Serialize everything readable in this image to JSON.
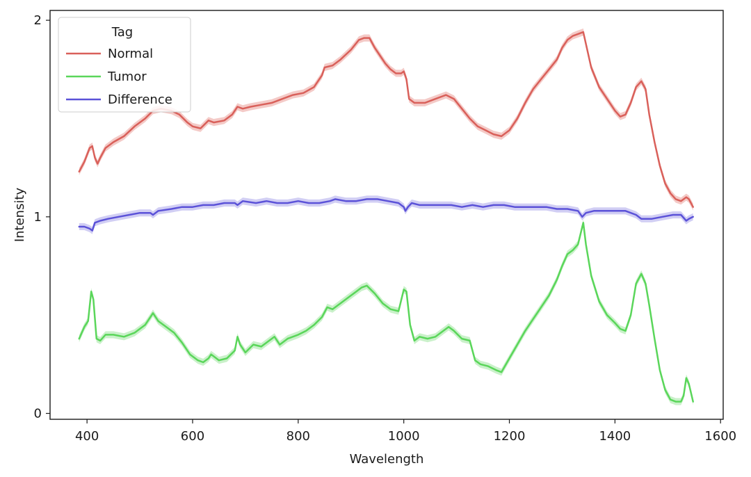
{
  "chart_data": {
    "type": "line",
    "xlabel": "Wavelength",
    "ylabel": "Intensity",
    "xlim": [
      330,
      1605
    ],
    "ylim": [
      -0.03,
      2.05
    ],
    "xticks": [
      400,
      600,
      800,
      1000,
      1200,
      1400,
      1600
    ],
    "yticks": [
      0,
      1,
      2
    ],
    "grid": false,
    "legend": {
      "title": "Tag",
      "placement": "top-left"
    },
    "series": [
      {
        "name": "Normal",
        "color": "#d9605a",
        "band_color": "#f0b8b4",
        "points": [
          [
            385,
            1.23
          ],
          [
            395,
            1.28
          ],
          [
            405,
            1.35
          ],
          [
            410,
            1.36
          ],
          [
            415,
            1.3
          ],
          [
            420,
            1.27
          ],
          [
            425,
            1.3
          ],
          [
            435,
            1.35
          ],
          [
            450,
            1.38
          ],
          [
            470,
            1.41
          ],
          [
            490,
            1.46
          ],
          [
            510,
            1.5
          ],
          [
            525,
            1.54
          ],
          [
            540,
            1.55
          ],
          [
            560,
            1.54
          ],
          [
            575,
            1.52
          ],
          [
            590,
            1.48
          ],
          [
            600,
            1.46
          ],
          [
            615,
            1.45
          ],
          [
            630,
            1.49
          ],
          [
            640,
            1.48
          ],
          [
            660,
            1.49
          ],
          [
            675,
            1.52
          ],
          [
            685,
            1.56
          ],
          [
            695,
            1.55
          ],
          [
            710,
            1.56
          ],
          [
            730,
            1.57
          ],
          [
            750,
            1.58
          ],
          [
            770,
            1.6
          ],
          [
            790,
            1.62
          ],
          [
            810,
            1.63
          ],
          [
            830,
            1.66
          ],
          [
            845,
            1.72
          ],
          [
            850,
            1.76
          ],
          [
            865,
            1.77
          ],
          [
            880,
            1.8
          ],
          [
            900,
            1.85
          ],
          [
            915,
            1.9
          ],
          [
            925,
            1.91
          ],
          [
            935,
            1.91
          ],
          [
            945,
            1.86
          ],
          [
            955,
            1.82
          ],
          [
            965,
            1.78
          ],
          [
            975,
            1.75
          ],
          [
            985,
            1.73
          ],
          [
            995,
            1.73
          ],
          [
            1000,
            1.74
          ],
          [
            1005,
            1.7
          ],
          [
            1010,
            1.6
          ],
          [
            1020,
            1.58
          ],
          [
            1040,
            1.58
          ],
          [
            1060,
            1.6
          ],
          [
            1080,
            1.62
          ],
          [
            1095,
            1.6
          ],
          [
            1110,
            1.55
          ],
          [
            1125,
            1.5
          ],
          [
            1140,
            1.46
          ],
          [
            1155,
            1.44
          ],
          [
            1170,
            1.42
          ],
          [
            1185,
            1.41
          ],
          [
            1200,
            1.44
          ],
          [
            1215,
            1.5
          ],
          [
            1230,
            1.58
          ],
          [
            1245,
            1.65
          ],
          [
            1260,
            1.7
          ],
          [
            1275,
            1.75
          ],
          [
            1290,
            1.8
          ],
          [
            1300,
            1.86
          ],
          [
            1310,
            1.9
          ],
          [
            1320,
            1.92
          ],
          [
            1330,
            1.93
          ],
          [
            1340,
            1.94
          ],
          [
            1345,
            1.88
          ],
          [
            1355,
            1.76
          ],
          [
            1370,
            1.66
          ],
          [
            1385,
            1.6
          ],
          [
            1400,
            1.54
          ],
          [
            1410,
            1.51
          ],
          [
            1420,
            1.52
          ],
          [
            1430,
            1.58
          ],
          [
            1440,
            1.66
          ],
          [
            1450,
            1.69
          ],
          [
            1458,
            1.65
          ],
          [
            1465,
            1.52
          ],
          [
            1475,
            1.38
          ],
          [
            1485,
            1.26
          ],
          [
            1495,
            1.17
          ],
          [
            1505,
            1.12
          ],
          [
            1515,
            1.09
          ],
          [
            1525,
            1.08
          ],
          [
            1535,
            1.1
          ],
          [
            1540,
            1.09
          ],
          [
            1548,
            1.05
          ]
        ]
      },
      {
        "name": "Tumor",
        "color": "#5ad65a",
        "band_color": "#b8ecb8",
        "points": [
          [
            385,
            0.38
          ],
          [
            395,
            0.44
          ],
          [
            402,
            0.47
          ],
          [
            408,
            0.62
          ],
          [
            412,
            0.58
          ],
          [
            418,
            0.38
          ],
          [
            425,
            0.37
          ],
          [
            435,
            0.4
          ],
          [
            450,
            0.4
          ],
          [
            470,
            0.39
          ],
          [
            490,
            0.41
          ],
          [
            510,
            0.45
          ],
          [
            520,
            0.49
          ],
          [
            525,
            0.51
          ],
          [
            535,
            0.47
          ],
          [
            550,
            0.44
          ],
          [
            565,
            0.41
          ],
          [
            580,
            0.36
          ],
          [
            595,
            0.3
          ],
          [
            610,
            0.27
          ],
          [
            620,
            0.26
          ],
          [
            630,
            0.28
          ],
          [
            635,
            0.3
          ],
          [
            640,
            0.29
          ],
          [
            650,
            0.27
          ],
          [
            665,
            0.28
          ],
          [
            680,
            0.32
          ],
          [
            685,
            0.39
          ],
          [
            690,
            0.35
          ],
          [
            700,
            0.31
          ],
          [
            715,
            0.35
          ],
          [
            730,
            0.34
          ],
          [
            745,
            0.37
          ],
          [
            755,
            0.39
          ],
          [
            765,
            0.35
          ],
          [
            780,
            0.38
          ],
          [
            800,
            0.4
          ],
          [
            815,
            0.42
          ],
          [
            830,
            0.45
          ],
          [
            845,
            0.49
          ],
          [
            855,
            0.54
          ],
          [
            865,
            0.53
          ],
          [
            880,
            0.56
          ],
          [
            900,
            0.6
          ],
          [
            920,
            0.64
          ],
          [
            930,
            0.65
          ],
          [
            945,
            0.61
          ],
          [
            960,
            0.56
          ],
          [
            975,
            0.53
          ],
          [
            990,
            0.52
          ],
          [
            1000,
            0.63
          ],
          [
            1005,
            0.62
          ],
          [
            1012,
            0.45
          ],
          [
            1020,
            0.37
          ],
          [
            1030,
            0.39
          ],
          [
            1045,
            0.38
          ],
          [
            1060,
            0.39
          ],
          [
            1075,
            0.42
          ],
          [
            1085,
            0.44
          ],
          [
            1095,
            0.42
          ],
          [
            1110,
            0.38
          ],
          [
            1125,
            0.37
          ],
          [
            1135,
            0.27
          ],
          [
            1145,
            0.25
          ],
          [
            1160,
            0.24
          ],
          [
            1175,
            0.22
          ],
          [
            1185,
            0.21
          ],
          [
            1200,
            0.28
          ],
          [
            1215,
            0.35
          ],
          [
            1230,
            0.42
          ],
          [
            1245,
            0.48
          ],
          [
            1260,
            0.54
          ],
          [
            1275,
            0.6
          ],
          [
            1290,
            0.68
          ],
          [
            1300,
            0.75
          ],
          [
            1310,
            0.81
          ],
          [
            1320,
            0.83
          ],
          [
            1330,
            0.86
          ],
          [
            1340,
            0.97
          ],
          [
            1345,
            0.86
          ],
          [
            1355,
            0.7
          ],
          [
            1370,
            0.57
          ],
          [
            1385,
            0.5
          ],
          [
            1400,
            0.46
          ],
          [
            1410,
            0.43
          ],
          [
            1420,
            0.42
          ],
          [
            1430,
            0.5
          ],
          [
            1440,
            0.66
          ],
          [
            1450,
            0.71
          ],
          [
            1458,
            0.66
          ],
          [
            1465,
            0.55
          ],
          [
            1475,
            0.38
          ],
          [
            1485,
            0.22
          ],
          [
            1495,
            0.12
          ],
          [
            1505,
            0.07
          ],
          [
            1515,
            0.06
          ],
          [
            1525,
            0.06
          ],
          [
            1530,
            0.09
          ],
          [
            1535,
            0.18
          ],
          [
            1540,
            0.15
          ],
          [
            1548,
            0.06
          ]
        ]
      },
      {
        "name": "Difference",
        "color": "#5b52d8",
        "band_color": "#c2bdf0",
        "points": [
          [
            385,
            0.95
          ],
          [
            395,
            0.95
          ],
          [
            405,
            0.94
          ],
          [
            410,
            0.93
          ],
          [
            415,
            0.97
          ],
          [
            425,
            0.98
          ],
          [
            440,
            0.99
          ],
          [
            460,
            1.0
          ],
          [
            480,
            1.01
          ],
          [
            500,
            1.02
          ],
          [
            520,
            1.02
          ],
          [
            525,
            1.01
          ],
          [
            535,
            1.03
          ],
          [
            560,
            1.04
          ],
          [
            580,
            1.05
          ],
          [
            600,
            1.05
          ],
          [
            620,
            1.06
          ],
          [
            640,
            1.06
          ],
          [
            660,
            1.07
          ],
          [
            680,
            1.07
          ],
          [
            685,
            1.06
          ],
          [
            695,
            1.08
          ],
          [
            720,
            1.07
          ],
          [
            740,
            1.08
          ],
          [
            760,
            1.07
          ],
          [
            780,
            1.07
          ],
          [
            800,
            1.08
          ],
          [
            820,
            1.07
          ],
          [
            840,
            1.07
          ],
          [
            860,
            1.08
          ],
          [
            870,
            1.09
          ],
          [
            890,
            1.08
          ],
          [
            910,
            1.08
          ],
          [
            930,
            1.09
          ],
          [
            950,
            1.09
          ],
          [
            970,
            1.08
          ],
          [
            990,
            1.07
          ],
          [
            1000,
            1.05
          ],
          [
            1003,
            1.03
          ],
          [
            1008,
            1.05
          ],
          [
            1015,
            1.07
          ],
          [
            1030,
            1.06
          ],
          [
            1050,
            1.06
          ],
          [
            1070,
            1.06
          ],
          [
            1090,
            1.06
          ],
          [
            1110,
            1.05
          ],
          [
            1130,
            1.06
          ],
          [
            1150,
            1.05
          ],
          [
            1170,
            1.06
          ],
          [
            1190,
            1.06
          ],
          [
            1210,
            1.05
          ],
          [
            1230,
            1.05
          ],
          [
            1250,
            1.05
          ],
          [
            1270,
            1.05
          ],
          [
            1290,
            1.04
          ],
          [
            1310,
            1.04
          ],
          [
            1330,
            1.03
          ],
          [
            1338,
            1.0
          ],
          [
            1345,
            1.02
          ],
          [
            1360,
            1.03
          ],
          [
            1380,
            1.03
          ],
          [
            1400,
            1.03
          ],
          [
            1420,
            1.03
          ],
          [
            1440,
            1.01
          ],
          [
            1450,
            0.99
          ],
          [
            1470,
            0.99
          ],
          [
            1490,
            1.0
          ],
          [
            1510,
            1.01
          ],
          [
            1525,
            1.01
          ],
          [
            1535,
            0.98
          ],
          [
            1540,
            0.99
          ],
          [
            1548,
            1.0
          ]
        ]
      }
    ]
  }
}
